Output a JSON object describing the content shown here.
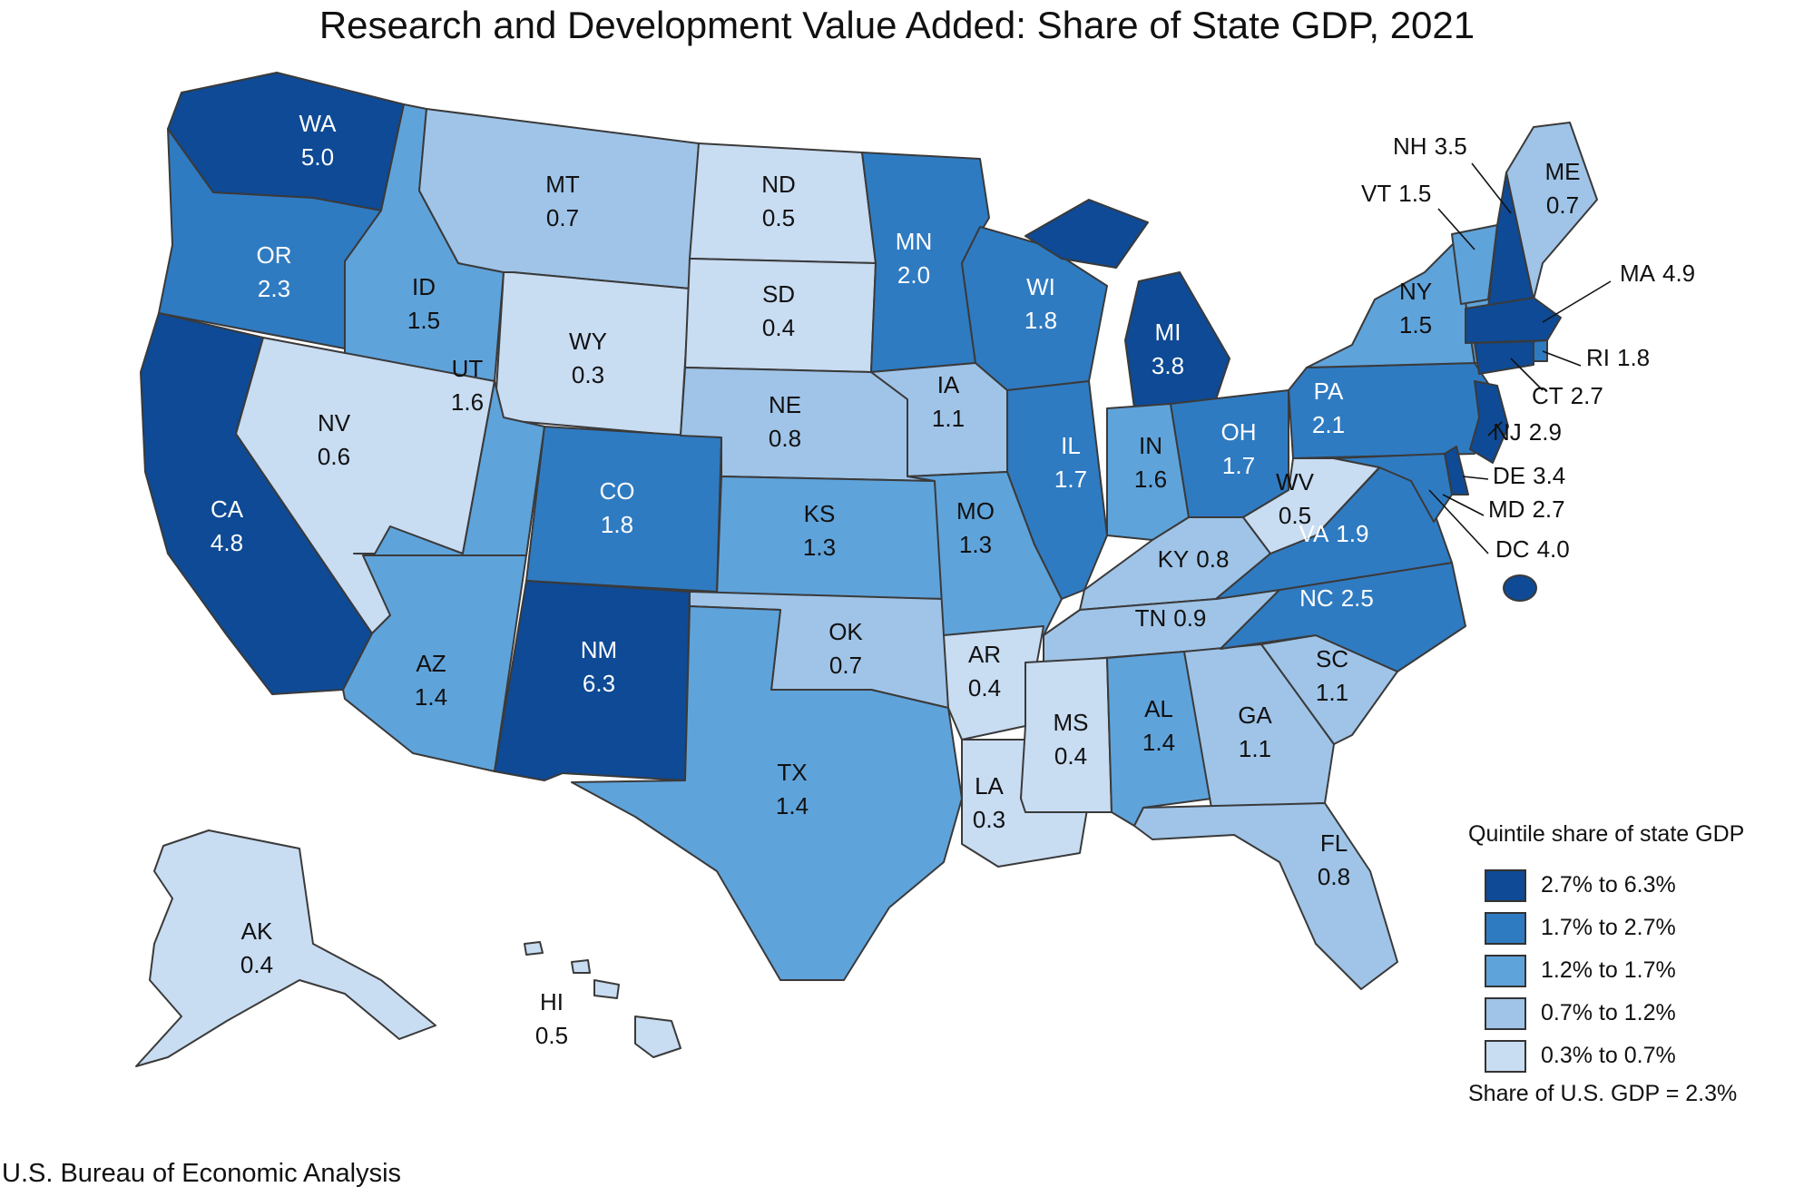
{
  "title": "Research and Development Value Added: Share of State GDP, 2021",
  "source": "U.S. Bureau of Economic Analysis",
  "legend": {
    "title": "Quintile share of state GDP",
    "classes": [
      {
        "label": "2.7% to 6.3%",
        "color": "#0e4a95"
      },
      {
        "label": "1.7% to 2.7%",
        "color": "#2f7bc2"
      },
      {
        "label": "1.2% to 1.7%",
        "color": "#5fa3db"
      },
      {
        "label": "0.7% to 1.2%",
        "color": "#9fc4e8"
      },
      {
        "label": "0.3% to 0.7%",
        "color": "#c8dcf2"
      }
    ],
    "us_share": "Share of U.S. GDP = 2.3%"
  },
  "states": [
    {
      "abbr": "WA",
      "value": "5.0",
      "class": 0
    },
    {
      "abbr": "OR",
      "value": "2.3",
      "class": 1
    },
    {
      "abbr": "CA",
      "value": "4.8",
      "class": 0
    },
    {
      "abbr": "ID",
      "value": "1.5",
      "class": 2
    },
    {
      "abbr": "NV",
      "value": "0.6",
      "class": 4
    },
    {
      "abbr": "MT",
      "value": "0.7",
      "class": 3
    },
    {
      "abbr": "WY",
      "value": "0.3",
      "class": 4
    },
    {
      "abbr": "UT",
      "value": "1.6",
      "class": 2
    },
    {
      "abbr": "AZ",
      "value": "1.4",
      "class": 2
    },
    {
      "abbr": "CO",
      "value": "1.8",
      "class": 1
    },
    {
      "abbr": "NM",
      "value": "6.3",
      "class": 0
    },
    {
      "abbr": "ND",
      "value": "0.5",
      "class": 4
    },
    {
      "abbr": "SD",
      "value": "0.4",
      "class": 4
    },
    {
      "abbr": "NE",
      "value": "0.8",
      "class": 3
    },
    {
      "abbr": "KS",
      "value": "1.3",
      "class": 2
    },
    {
      "abbr": "OK",
      "value": "0.7",
      "class": 3
    },
    {
      "abbr": "TX",
      "value": "1.4",
      "class": 2
    },
    {
      "abbr": "MN",
      "value": "2.0",
      "class": 1
    },
    {
      "abbr": "IA",
      "value": "1.1",
      "class": 3
    },
    {
      "abbr": "MO",
      "value": "1.3",
      "class": 2
    },
    {
      "abbr": "AR",
      "value": "0.4",
      "class": 4
    },
    {
      "abbr": "LA",
      "value": "0.3",
      "class": 4
    },
    {
      "abbr": "WI",
      "value": "1.8",
      "class": 1
    },
    {
      "abbr": "IL",
      "value": "1.7",
      "class": 1
    },
    {
      "abbr": "MI",
      "value": "3.8",
      "class": 0
    },
    {
      "abbr": "IN",
      "value": "1.6",
      "class": 2
    },
    {
      "abbr": "OH",
      "value": "1.7",
      "class": 1
    },
    {
      "abbr": "KY",
      "value": "0.8",
      "class": 3
    },
    {
      "abbr": "TN",
      "value": "0.9",
      "class": 3
    },
    {
      "abbr": "MS",
      "value": "0.4",
      "class": 4
    },
    {
      "abbr": "AL",
      "value": "1.4",
      "class": 2
    },
    {
      "abbr": "GA",
      "value": "1.1",
      "class": 3
    },
    {
      "abbr": "FL",
      "value": "0.8",
      "class": 3
    },
    {
      "abbr": "SC",
      "value": "1.1",
      "class": 3
    },
    {
      "abbr": "NC",
      "value": "2.5",
      "class": 1
    },
    {
      "abbr": "VA",
      "value": "1.9",
      "class": 1
    },
    {
      "abbr": "WV",
      "value": "0.5",
      "class": 4
    },
    {
      "abbr": "PA",
      "value": "2.1",
      "class": 1
    },
    {
      "abbr": "NY",
      "value": "1.5",
      "class": 2
    },
    {
      "abbr": "VT",
      "value": "1.5",
      "class": 2
    },
    {
      "abbr": "NH",
      "value": "3.5",
      "class": 0
    },
    {
      "abbr": "ME",
      "value": "0.7",
      "class": 3
    },
    {
      "abbr": "MA",
      "value": "4.9",
      "class": 0
    },
    {
      "abbr": "RI",
      "value": "1.8",
      "class": 1
    },
    {
      "abbr": "CT",
      "value": "2.7",
      "class": 0
    },
    {
      "abbr": "NJ",
      "value": "2.9",
      "class": 0
    },
    {
      "abbr": "DE",
      "value": "3.4",
      "class": 0
    },
    {
      "abbr": "MD",
      "value": "2.7",
      "class": 1
    },
    {
      "abbr": "DC",
      "value": "4.0",
      "class": 0
    },
    {
      "abbr": "AK",
      "value": "0.4",
      "class": 4
    },
    {
      "abbr": "HI",
      "value": "0.5",
      "class": 4
    }
  ]
}
